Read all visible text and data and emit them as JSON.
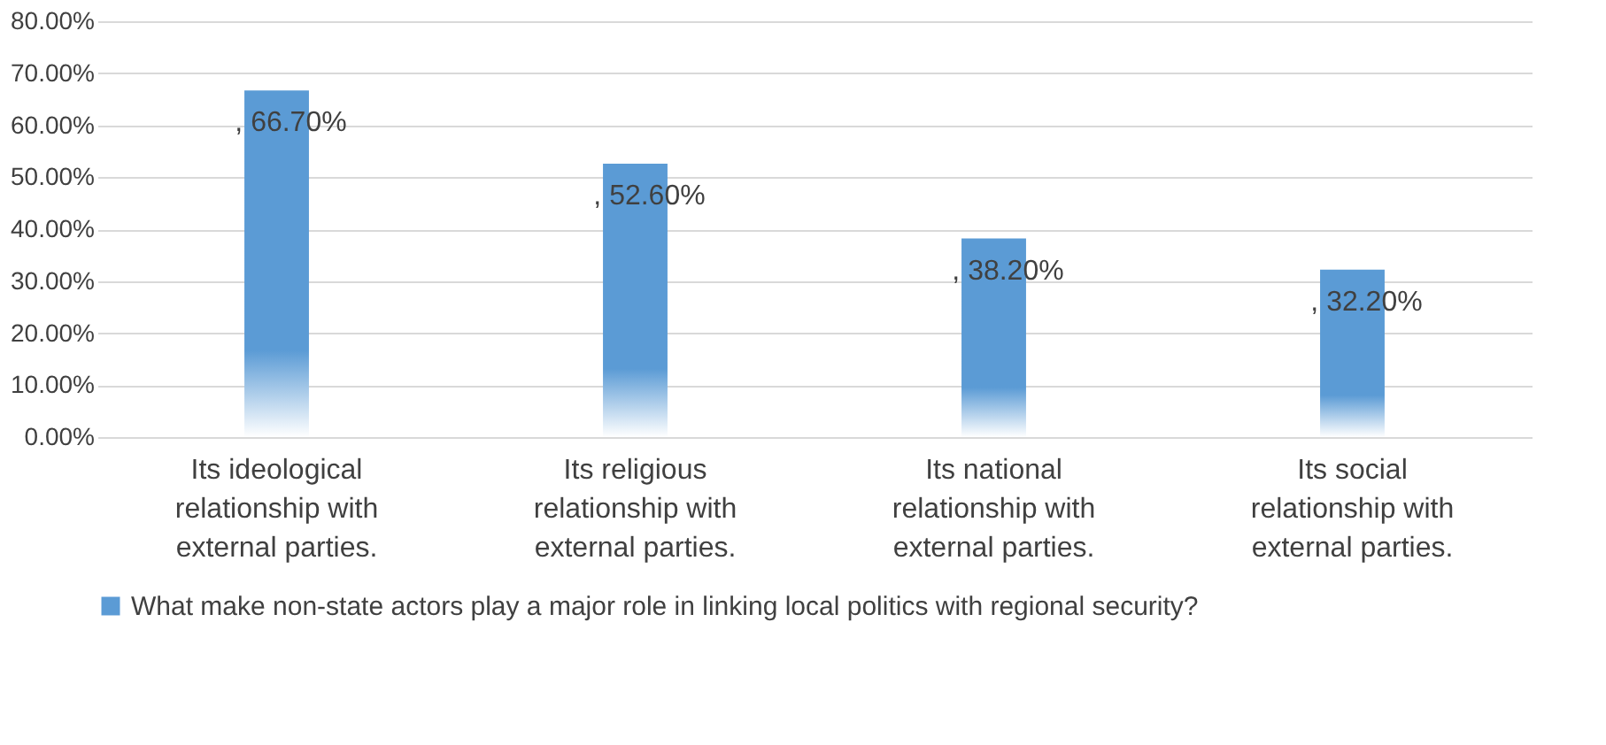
{
  "chart_data": {
    "type": "bar",
    "categories": [
      "Its ideological relationship with external parties.",
      "Its religious relationship with external parties.",
      "Its national relationship with external parties.",
      "Its social relationship with external parties."
    ],
    "series": [
      {
        "name": "What make non-state actors play a major role in linking local politics with regional security?",
        "color": "#5b9bd5",
        "values": [
          66.7,
          52.6,
          38.2,
          32.2
        ],
        "value_labels": [
          ", 66.70%",
          ", 52.60%",
          ", 38.20%",
          ", 32.20%"
        ]
      }
    ],
    "ylim": [
      0,
      80
    ],
    "yticks": [
      {
        "value": 0,
        "label": "0.00%"
      },
      {
        "value": 10,
        "label": "10.00%"
      },
      {
        "value": 20,
        "label": "20.00%"
      },
      {
        "value": 30,
        "label": "30.00%"
      },
      {
        "value": 40,
        "label": "40.00%"
      },
      {
        "value": 50,
        "label": "50.00%"
      },
      {
        "value": 60,
        "label": "60.00%"
      },
      {
        "value": 70,
        "label": "70.00%"
      },
      {
        "value": 80,
        "label": "80.00%"
      }
    ],
    "grid": "y",
    "legend": "bottom"
  }
}
